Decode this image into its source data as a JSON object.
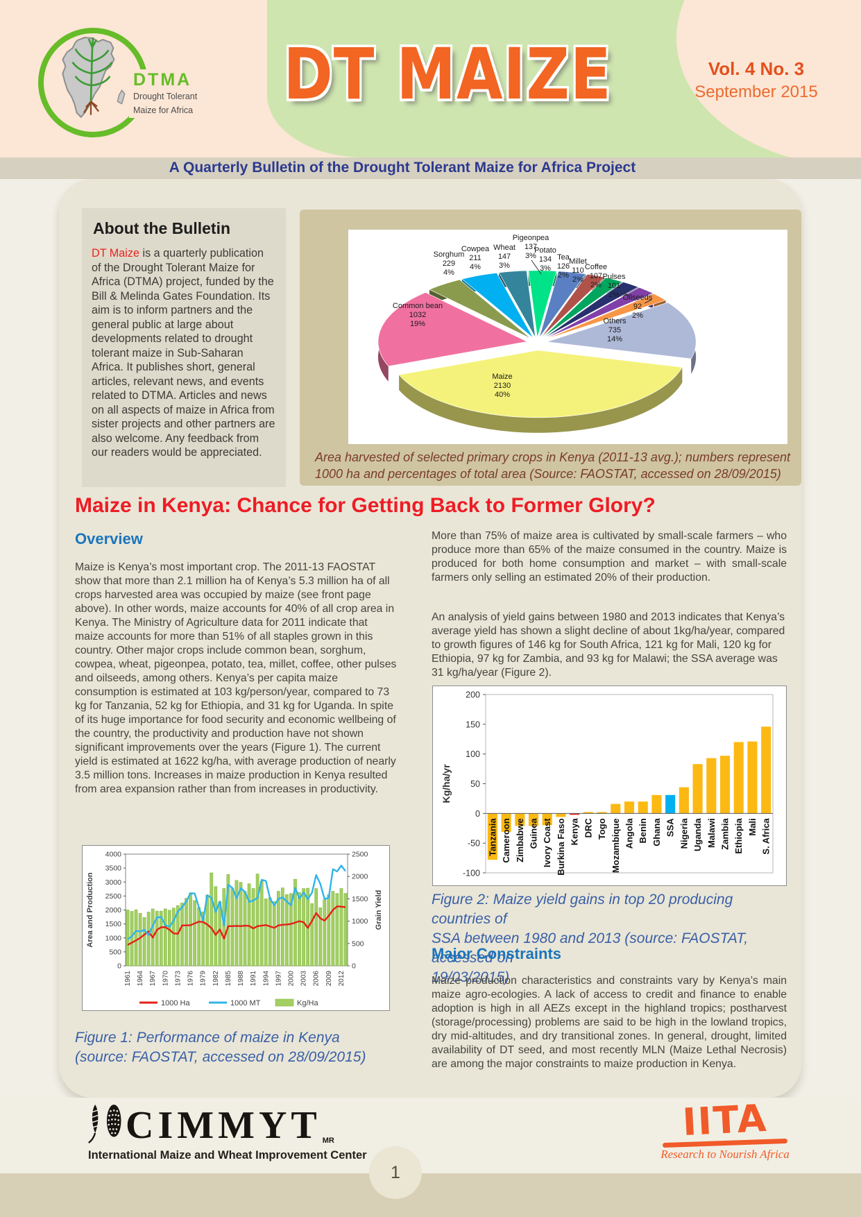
{
  "header": {
    "logo": {
      "abbr": "DTMA",
      "line1": "Drought Tolerant",
      "line2": "Maize for Africa"
    },
    "title": "DT MAIZE",
    "volume": "Vol. 4 No. 3",
    "date": "September 2015",
    "subtitle": "A Quarterly Bulletin of the Drought Tolerant Maize for Africa Project"
  },
  "about": {
    "title": "About the Bulletin",
    "highlight": "DT Maize",
    "body": " is a quarterly publication of the Drought Tolerant Maize for Africa (DTMA) project, funded by the Bill & Melinda Gates Foundation. Its aim is to inform partners and the general public at large about developments related to drought tolerant maize in Sub-Saharan Africa. It publishes short, general articles, relevant news, and events related to DTMA. Articles and news on all aspects of maize in Africa from sister projects and other partners are also welcome. Any feedback from our readers would be appreciated."
  },
  "pie_caption": "Area harvested of selected primary crops in Kenya (2011-13 avg.); numbers represent\n1000 ha and percentages of total area (Source: FAOSTAT, accessed on 28/09/2015)",
  "article": {
    "headline": "Maize in Kenya: Chance for Getting Back to Former Glory?",
    "overview_heading": "Overview",
    "overview_p1": "Maize is Kenya’s most important crop. The 2011-13 FAOSTAT show that more than 2.1 million ha of Kenya’s 5.3 million ha of all crops harvested area was occupied by maize (see front page above). In other words, maize accounts for 40% of all crop area in Kenya. The Ministry of Agriculture data for 2011 indicate that maize accounts for more than 51% of all staples grown in this country. Other major crops include common bean, sorghum, cowpea, wheat, pigeonpea, potato, tea, millet, coffee, other pulses and oilseeds, among others. Kenya’s per capita maize consumption is estimated at 103 kg/person/year, compared to 73 kg for Tanzania, 52 kg for Ethiopia, and 31 kg for Uganda. In spite of its huge importance for food security and economic wellbeing of the country, the productivity and production have not shown significant improvements over the years (Figure 1). The current yield is estimated at 1622 kg/ha, with average production of nearly 3.5 million tons. Increases in maize production in Kenya resulted from area expansion rather than from increases in productivity.",
    "col2_p1": "More than 75% of maize area is cultivated by small-scale farmers – who produce more than 65% of the maize consumed in the country. Maize is produced for both home consumption and market – with small-scale farmers only selling an estimated 20% of their production.",
    "col2_p2": "An analysis of yield gains between 1980 and 2013 indicates that Kenya’s average yield has shown a slight decline of about 1kg/ha/year, compared to growth figures of 146 kg for South Africa, 121 kg for Mali, 120 kg for Ethiopia, 97 kg for Zambia, and 93 kg for Malawi; the SSA average was 31 kg/ha/year (Figure 2).",
    "fig1_caption": "Figure 1: Performance of maize in Kenya\n(source: FAOSTAT, accessed on 28/09/2015)",
    "fig2_caption": "Figure 2: Maize yield gains in top 20 producing countries of\nSSA between 1980 and 2013 (source: FAOSTAT, accessed on\n19/03/2015)",
    "constraints_heading": "Major Constraints",
    "constraints_p": "Maize production characteristics and constraints vary by Kenya’s main maize agro-ecologies. A lack of access to credit and finance to enable adoption is high in all AEZs except in the highland tropics; postharvest (storage/processing) problems are said to be high in the lowland tropics, dry mid-altitudes, and dry transitional zones. In general, drought, limited availability of DT seed, and most recently MLN (Maize Lethal Necrosis) are among the major constraints to maize production in Kenya."
  },
  "footer": {
    "cimmyt_name": "CIMMYT",
    "cimmyt_mr": "MR",
    "cimmyt_sub": "International Maize and Wheat Improvement Center",
    "iita_name": "IITA",
    "iita_tagline": "Research to Nourish Africa",
    "page_number": "1"
  },
  "chart_data": [
    {
      "type": "pie",
      "title": "Area harvested of selected primary crops in Kenya (2011-13 avg.)",
      "units": "1000 ha",
      "start_angle": -43,
      "slices": [
        {
          "label": "Sorghum",
          "value": 229,
          "pct": 4,
          "color": "#8a9b4d"
        },
        {
          "label": "Cowpea",
          "value": 211,
          "pct": 4,
          "color": "#00b0f0"
        },
        {
          "label": "Wheat",
          "value": 147,
          "pct": 3,
          "color": "#34859b"
        },
        {
          "label": "Pigeonpea",
          "value": 137,
          "pct": 3,
          "color": "#00e389"
        },
        {
          "label": "Potato",
          "value": 134,
          "pct": 3,
          "color": "#5a7fc2"
        },
        {
          "label": "Tea",
          "value": 126,
          "pct": 2,
          "color": "#b0524a"
        },
        {
          "label": "Millet",
          "value": 110,
          "pct": 2,
          "color": "#00a65d"
        },
        {
          "label": "Coffee",
          "value": 107,
          "pct": 2,
          "color": "#28316e"
        },
        {
          "label": "Pulses",
          "value": 101,
          "pct": 2,
          "color": "#8040a8"
        },
        {
          "label": "Oilseeds",
          "value": 92,
          "pct": 2,
          "color": "#f79646"
        },
        {
          "label": "Others",
          "value": 735,
          "pct": 14,
          "color": "#aeb9d8"
        },
        {
          "label": "Maize",
          "value": 2130,
          "pct": 40,
          "color": "#f5f27b"
        },
        {
          "label": "Common bean",
          "value": 1032,
          "pct": 19,
          "color": "#f0719f"
        }
      ]
    },
    {
      "type": "combo",
      "ylabel_left": "Area and Production",
      "ylabel_right": "Grain Yield",
      "ylim_left": [
        0,
        4000
      ],
      "ylim_right": [
        0,
        2500
      ],
      "ytick_step_left": 500,
      "ytick_step_right": 500,
      "years": [
        1961,
        1962,
        1963,
        1964,
        1965,
        1966,
        1967,
        1968,
        1969,
        1970,
        1971,
        1972,
        1973,
        1974,
        1975,
        1976,
        1977,
        1978,
        1979,
        1980,
        1981,
        1982,
        1983,
        1984,
        1985,
        1986,
        1987,
        1988,
        1989,
        1990,
        1991,
        1992,
        1993,
        1994,
        1995,
        1996,
        1997,
        1998,
        1999,
        2000,
        2001,
        2002,
        2003,
        2004,
        2005,
        2006,
        2007,
        2008,
        2009,
        2010,
        2011,
        2012,
        2013
      ],
      "series": [
        {
          "name": "1000 Ha",
          "kind": "line",
          "color": "#e52017",
          "axis": "left",
          "values": [
            750,
            830,
            910,
            1000,
            1120,
            1230,
            1010,
            1290,
            1380,
            1385,
            1290,
            1160,
            1150,
            1445,
            1450,
            1455,
            1520,
            1580,
            1570,
            1480,
            1350,
            1110,
            1300,
            975,
            1420,
            1420,
            1430,
            1420,
            1440,
            1430,
            1340,
            1420,
            1440,
            1460,
            1410,
            1360,
            1450,
            1470,
            1480,
            1500,
            1550,
            1600,
            1560,
            1360,
            1610,
            1890,
            1700,
            1620,
            1790,
            2000,
            2130,
            2120,
            2100
          ]
        },
        {
          "name": "1000 MT",
          "kind": "line",
          "color": "#2fb4e9",
          "axis": "left",
          "values": [
            950,
            1060,
            1250,
            1230,
            1290,
            1100,
            1440,
            1730,
            1750,
            1450,
            1400,
            1620,
            1950,
            2100,
            2310,
            2600,
            2590,
            2100,
            1620,
            2530,
            2430,
            1930,
            2300,
            1450,
            2900,
            2790,
            2420,
            2780,
            2650,
            2290,
            2340,
            2430,
            3080,
            3040,
            2400,
            2170,
            2400,
            2450,
            2300,
            2170,
            2790,
            2410,
            2630,
            2390,
            2620,
            3250,
            2930,
            2390,
            2440,
            3460,
            3380,
            3590,
            3390
          ]
        },
        {
          "name": "Kg/Ha",
          "kind": "bar",
          "color": "#a3cf63",
          "axis": "right",
          "values": [
            1250,
            1219,
            1256,
            1175,
            1081,
            1203,
            1275,
            1225,
            1225,
            1275,
            1244,
            1294,
            1350,
            1406,
            1513,
            1625,
            1463,
            1306,
            1206,
            1581,
            2081,
            1775,
            1438,
            1731,
            2044,
            1731,
            1913,
            1869,
            1663,
            1838,
            1731,
            2056,
            1894,
            1500,
            1525,
            1438,
            1669,
            1744,
            1594,
            1619,
            1938,
            1644,
            1731,
            1738,
            1394,
            1731,
            1300,
            1481,
            1594,
            1669,
            1619,
            1731,
            1622
          ]
        }
      ]
    },
    {
      "type": "bar",
      "ylabel": "Kg/ha/yr",
      "ylim": [
        -100,
        200
      ],
      "ytick_step": 50,
      "categories": [
        "Tanzania",
        "Cameroon",
        "Zimbabwe",
        "Guinea",
        "Ivory Coast",
        "Burkina Faso",
        "Kenya",
        "DRC",
        "Togo",
        "Mozambique",
        "Angola",
        "Benin",
        "Ghana",
        "SSA",
        "Nigeria",
        "Uganda",
        "Malawi",
        "Zambia",
        "Ethiopia",
        "Mali",
        "S. Africa"
      ],
      "values": [
        -78,
        -31,
        -21,
        -21,
        -20,
        -6,
        -1,
        1,
        1,
        16,
        20,
        20,
        31,
        31,
        44,
        83,
        93,
        97,
        120,
        121,
        146
      ],
      "colors": [
        "#fdb913",
        "#fdb913",
        "#fdb913",
        "#fdb913",
        "#fdb913",
        "#fdb913",
        "#e8231f",
        "#fdb913",
        "#fdb913",
        "#fdb913",
        "#fdb913",
        "#fdb913",
        "#fdb913",
        "#00b0f0",
        "#fdb913",
        "#fdb913",
        "#fdb913",
        "#fdb913",
        "#fdb913",
        "#fdb913",
        "#fdb913"
      ]
    }
  ]
}
